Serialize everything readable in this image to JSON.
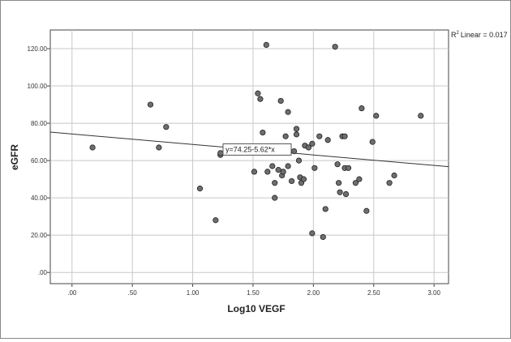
{
  "chart_data": {
    "type": "scatter",
    "xlabel": "Log10 VEGF",
    "ylabel": "eGFR",
    "xlim": [
      -0.18,
      3.12
    ],
    "ylim": [
      -6,
      130
    ],
    "xticks": [
      0,
      0.5,
      1.0,
      1.5,
      2.0,
      2.5,
      3.0
    ],
    "xtick_labels": [
      ".00",
      ".50",
      "1.00",
      "1.50",
      "2.00",
      "2.50",
      "3.00"
    ],
    "yticks": [
      0,
      20,
      40,
      60,
      80,
      100,
      120
    ],
    "ytick_labels": [
      ".00",
      "20.00",
      "40.00",
      "60.00",
      "80.00",
      "100.00",
      "120.00"
    ],
    "grid": true,
    "r2_label": "Linear = 0.017",
    "fit_line": {
      "intercept": 74.25,
      "slope": -5.62,
      "label": "y=74.25-5.62*x"
    },
    "points": [
      {
        "x": 0.17,
        "y": 67
      },
      {
        "x": 0.65,
        "y": 90
      },
      {
        "x": 0.72,
        "y": 67
      },
      {
        "x": 0.78,
        "y": 78
      },
      {
        "x": 1.06,
        "y": 45
      },
      {
        "x": 1.19,
        "y": 28
      },
      {
        "x": 1.23,
        "y": 63
      },
      {
        "x": 1.23,
        "y": 64
      },
      {
        "x": 1.51,
        "y": 54
      },
      {
        "x": 1.54,
        "y": 96
      },
      {
        "x": 1.56,
        "y": 93
      },
      {
        "x": 1.58,
        "y": 75
      },
      {
        "x": 1.61,
        "y": 122
      },
      {
        "x": 1.62,
        "y": 54
      },
      {
        "x": 1.66,
        "y": 57
      },
      {
        "x": 1.68,
        "y": 40
      },
      {
        "x": 1.68,
        "y": 48
      },
      {
        "x": 1.71,
        "y": 55
      },
      {
        "x": 1.73,
        "y": 92
      },
      {
        "x": 1.74,
        "y": 52
      },
      {
        "x": 1.75,
        "y": 54
      },
      {
        "x": 1.77,
        "y": 73
      },
      {
        "x": 1.79,
        "y": 86
      },
      {
        "x": 1.79,
        "y": 57
      },
      {
        "x": 1.82,
        "y": 49
      },
      {
        "x": 1.84,
        "y": 65
      },
      {
        "x": 1.86,
        "y": 74
      },
      {
        "x": 1.86,
        "y": 77
      },
      {
        "x": 1.88,
        "y": 60
      },
      {
        "x": 1.89,
        "y": 51
      },
      {
        "x": 1.9,
        "y": 48
      },
      {
        "x": 1.92,
        "y": 50
      },
      {
        "x": 1.93,
        "y": 68
      },
      {
        "x": 1.96,
        "y": 67
      },
      {
        "x": 1.99,
        "y": 69
      },
      {
        "x": 1.99,
        "y": 21
      },
      {
        "x": 2.01,
        "y": 56
      },
      {
        "x": 2.05,
        "y": 73
      },
      {
        "x": 2.08,
        "y": 19
      },
      {
        "x": 2.1,
        "y": 34
      },
      {
        "x": 2.12,
        "y": 71
      },
      {
        "x": 2.18,
        "y": 121
      },
      {
        "x": 2.2,
        "y": 58
      },
      {
        "x": 2.21,
        "y": 48
      },
      {
        "x": 2.22,
        "y": 43
      },
      {
        "x": 2.24,
        "y": 73
      },
      {
        "x": 2.26,
        "y": 56
      },
      {
        "x": 2.26,
        "y": 73
      },
      {
        "x": 2.27,
        "y": 42
      },
      {
        "x": 2.29,
        "y": 56
      },
      {
        "x": 2.35,
        "y": 48
      },
      {
        "x": 2.38,
        "y": 50
      },
      {
        "x": 2.4,
        "y": 88
      },
      {
        "x": 2.44,
        "y": 33
      },
      {
        "x": 2.49,
        "y": 70
      },
      {
        "x": 2.52,
        "y": 84
      },
      {
        "x": 2.63,
        "y": 48
      },
      {
        "x": 2.67,
        "y": 52
      },
      {
        "x": 2.89,
        "y": 84
      }
    ]
  }
}
